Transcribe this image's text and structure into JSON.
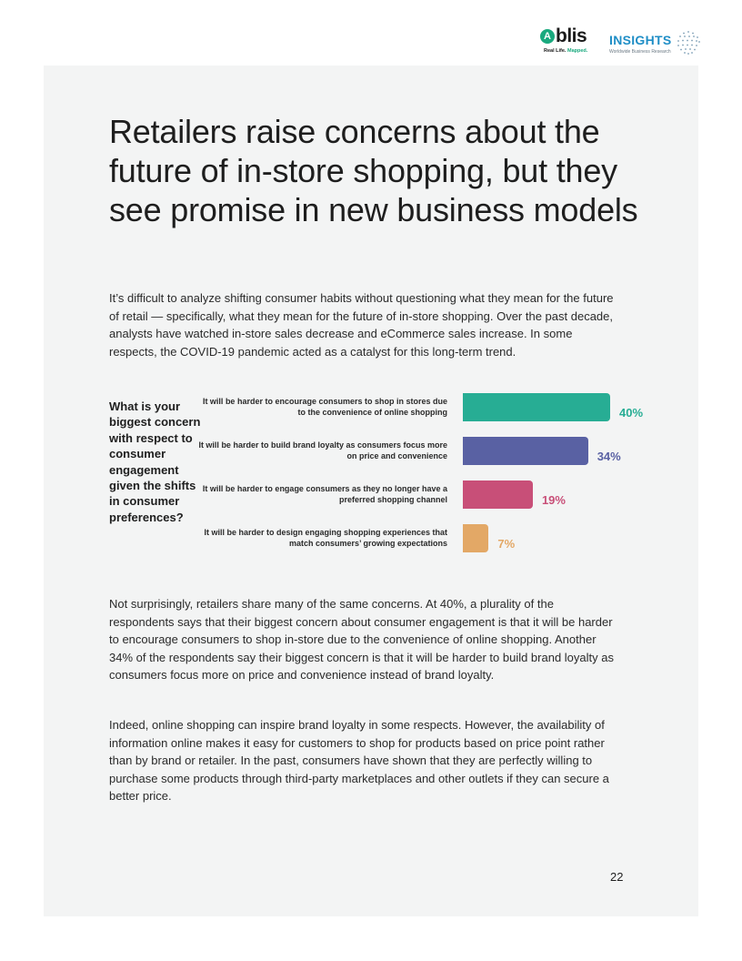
{
  "header": {
    "blis_logo_mark": "A",
    "blis_logo_word": "blis",
    "blis_tagline_prefix": "Real Life.",
    "blis_tagline_suffix": "Mapped.",
    "insights_word": "INSIGHTS",
    "insights_subtitle": "Worldwide Business Research"
  },
  "title": "Retailers raise concerns about the future of in-store shopping, but they see promise in new business models",
  "intro_paragraph": "It’s difficult to analyze shifting consumer habits without questioning what they mean for the future of retail — specifically, what they mean for the future of in-store shopping. Over the past decade, analysts have watched in-store sales decrease and eCommerce sales increase. In some respects, the COVID-19 pandemic acted as a catalyst for this long-term trend.",
  "chart_data": {
    "type": "bar",
    "orientation": "horizontal",
    "title": "What is your biggest concern with respect to consumer engagement given the shifts in consumer preferences?",
    "categories": [
      "It will be harder to encourage consumers to shop in stores due to the convenience of online shopping",
      "It will be harder to build brand loyalty as consumers focus more on price and convenience",
      "It will be harder to engage consumers as they no longer have a preferred shopping channel",
      "It will be harder to design engaging shopping experiences that match consumers’ growing expectations"
    ],
    "values": [
      40,
      34,
      19,
      7
    ],
    "value_labels": [
      "40%",
      "34%",
      "19%",
      "7%"
    ],
    "colors": [
      "#27ad94",
      "#5961a3",
      "#c84f78",
      "#e3a866"
    ],
    "xlim": [
      0,
      40
    ],
    "grid": false,
    "legend": "none"
  },
  "body_paragraphs": [
    "Not surprisingly, retailers share many of the same concerns. At 40%, a plurality of the respondents says that their biggest concern about consumer engagement is that it will be harder to encourage consumers to shop in-store due to the convenience of online shopping. Another 34% of the respondents say their biggest concern is that it will be harder to build brand loyalty as consumers focus more on price and convenience instead of brand loyalty.",
    "Indeed, online shopping can inspire brand loyalty in some respects. However, the availability of information online makes it easy for customers to shop for products based on price point rather than by brand or retailer. In the past, consumers have shown that they are perfectly willing to purchase some products through third-party marketplaces and other outlets if they can secure a better price."
  ],
  "page_number": "22"
}
